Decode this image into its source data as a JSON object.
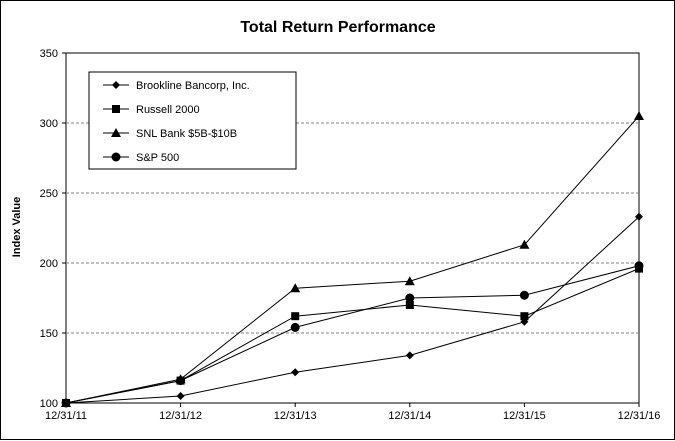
{
  "chart_data": {
    "type": "line",
    "title": "Total Return Performance",
    "xlabel": "",
    "ylabel": "Index Value",
    "categories": [
      "12/31/11",
      "12/31/12",
      "12/31/13",
      "12/31/14",
      "12/31/15",
      "12/31/16"
    ],
    "ylim": [
      100,
      350
    ],
    "yticks": [
      100,
      150,
      200,
      250,
      300,
      350
    ],
    "grid": "horizontal dashed",
    "legend_position": "top-left",
    "series": [
      {
        "name": "Brookline Bancorp, Inc.",
        "marker": "diamond",
        "values": [
          100,
          105,
          122,
          134,
          158,
          233
        ]
      },
      {
        "name": "Russell 2000",
        "marker": "square",
        "values": [
          100,
          116,
          162,
          170,
          162,
          196
        ]
      },
      {
        "name": "SNL Bank $5B-$10B",
        "marker": "triangle",
        "values": [
          100,
          117,
          182,
          187,
          213,
          305
        ]
      },
      {
        "name": "S&P 500",
        "marker": "circle",
        "values": [
          100,
          116,
          154,
          175,
          177,
          198
        ]
      }
    ]
  }
}
